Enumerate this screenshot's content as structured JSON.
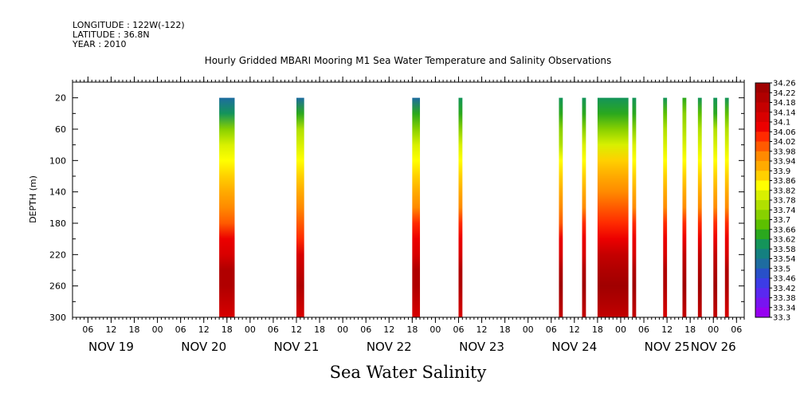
{
  "header": {
    "line1": "LONGITUDE : 122W(-122)",
    "line2": "LATITUDE : 36.8N",
    "line3": "YEAR : 2010"
  },
  "chart_data": {
    "type": "heatmap",
    "title": "Hourly Gridded MBARI Mooring M1 Sea Water Temperature and Salinity Observations",
    "subtitle": "",
    "xlabel": "",
    "ylabel": "DEPTH (m)",
    "footer_label": "Sea Water Salinity",
    "y_axis": {
      "range": [
        300,
        0
      ],
      "ticks": [
        "20",
        "60",
        "100",
        "140",
        "180",
        "220",
        "260",
        "300"
      ],
      "tick_values": [
        20,
        60,
        100,
        140,
        180,
        220,
        260,
        300
      ]
    },
    "x_axis": {
      "range": [
        "2010-11-19T02:00",
        "2010-11-26T08:00"
      ],
      "hour_ticks": [
        {
          "t": "2010-11-19T06:00",
          "label": "06"
        },
        {
          "t": "2010-11-19T12:00",
          "label": "12"
        },
        {
          "t": "2010-11-19T18:00",
          "label": "18"
        },
        {
          "t": "2010-11-20T00:00",
          "label": "00"
        },
        {
          "t": "2010-11-20T06:00",
          "label": "06"
        },
        {
          "t": "2010-11-20T12:00",
          "label": "12"
        },
        {
          "t": "2010-11-20T18:00",
          "label": "18"
        },
        {
          "t": "2010-11-21T00:00",
          "label": "00"
        },
        {
          "t": "2010-11-21T06:00",
          "label": "06"
        },
        {
          "t": "2010-11-21T12:00",
          "label": "12"
        },
        {
          "t": "2010-11-21T18:00",
          "label": "18"
        },
        {
          "t": "2010-11-22T00:00",
          "label": "00"
        },
        {
          "t": "2010-11-22T06:00",
          "label": "06"
        },
        {
          "t": "2010-11-22T12:00",
          "label": "12"
        },
        {
          "t": "2010-11-22T18:00",
          "label": "18"
        },
        {
          "t": "2010-11-23T00:00",
          "label": "00"
        },
        {
          "t": "2010-11-23T06:00",
          "label": "06"
        },
        {
          "t": "2010-11-23T12:00",
          "label": "12"
        },
        {
          "t": "2010-11-23T18:00",
          "label": "18"
        },
        {
          "t": "2010-11-24T00:00",
          "label": "00"
        },
        {
          "t": "2010-11-24T06:00",
          "label": "06"
        },
        {
          "t": "2010-11-24T12:00",
          "label": "12"
        },
        {
          "t": "2010-11-24T18:00",
          "label": "18"
        },
        {
          "t": "2010-11-25T00:00",
          "label": "00"
        },
        {
          "t": "2010-11-25T06:00",
          "label": "06"
        },
        {
          "t": "2010-11-25T12:00",
          "label": "12"
        },
        {
          "t": "2010-11-25T18:00",
          "label": "18"
        },
        {
          "t": "2010-11-26T00:00",
          "label": "00"
        },
        {
          "t": "2010-11-26T06:00",
          "label": "06"
        }
      ],
      "day_labels": [
        {
          "t": "2010-11-19T12:00",
          "label": "NOV 19"
        },
        {
          "t": "2010-11-20T12:00",
          "label": "NOV 20"
        },
        {
          "t": "2010-11-21T12:00",
          "label": "NOV 21"
        },
        {
          "t": "2010-11-22T12:00",
          "label": "NOV 22"
        },
        {
          "t": "2010-11-23T12:00",
          "label": "NOV 23"
        },
        {
          "t": "2010-11-24T12:00",
          "label": "NOV 24"
        },
        {
          "t": "2010-11-25T12:00",
          "label": "NOV 25"
        },
        {
          "t": "2010-11-26T00:00",
          "label": "NOV 26"
        }
      ]
    },
    "colorbar": {
      "min": 33.3,
      "max": 34.26,
      "labels": [
        "34.26",
        "34.22",
        "34.18",
        "34.14",
        "34.1",
        "34.06",
        "34.02",
        "33.98",
        "33.94",
        "33.9",
        "33.86",
        "33.82",
        "33.78",
        "33.74",
        "33.7",
        "33.66",
        "33.62",
        "33.58",
        "33.54",
        "33.5",
        "33.46",
        "33.42",
        "33.38",
        "33.34",
        "33.3"
      ],
      "colors": [
        "#a00000",
        "#b00000",
        "#c40000",
        "#d80000",
        "#ec0000",
        "#ff2a00",
        "#ff5a00",
        "#ff8a00",
        "#ffaa00",
        "#ffd000",
        "#ffff00",
        "#d8f000",
        "#b0e000",
        "#88d000",
        "#5cc000",
        "#2aa81e",
        "#14945a",
        "#148080",
        "#1e6ca0",
        "#2850c8",
        "#3c3ce6",
        "#5a28f0",
        "#7814f0",
        "#9600f0"
      ]
    },
    "profile_depths": [
      20,
      40,
      60,
      80,
      100,
      120,
      140,
      160,
      180,
      200,
      220,
      240,
      260,
      280,
      300
    ],
    "columns": [
      {
        "start": "2010-11-20T16:00",
        "end": "2010-11-20T20:00",
        "profile": [
          33.5,
          33.58,
          33.7,
          33.78,
          33.84,
          33.88,
          33.92,
          33.98,
          34.0,
          34.06,
          34.12,
          34.18,
          34.2,
          34.16,
          34.12
        ]
      },
      {
        "start": "2010-11-21T12:00",
        "end": "2010-11-21T14:00",
        "profile": [
          33.5,
          33.66,
          33.74,
          33.8,
          33.84,
          33.88,
          33.9,
          33.96,
          34.0,
          34.04,
          34.1,
          34.16,
          34.18,
          34.14,
          34.1
        ]
      },
      {
        "start": "2010-11-22T18:00",
        "end": "2010-11-22T20:00",
        "profile": [
          33.52,
          33.62,
          33.7,
          33.78,
          33.84,
          33.88,
          33.92,
          33.98,
          34.02,
          34.08,
          34.12,
          34.18,
          34.2,
          34.16,
          34.12
        ]
      },
      {
        "start": "2010-11-23T06:00",
        "end": "2010-11-23T07:00",
        "profile": [
          33.58,
          33.62,
          33.7,
          33.78,
          33.84,
          33.88,
          33.92,
          33.98,
          34.02,
          34.08,
          34.12,
          34.18,
          34.2,
          34.16,
          34.12
        ]
      },
      {
        "start": "2010-11-24T08:00",
        "end": "2010-11-24T09:00",
        "profile": [
          33.58,
          33.64,
          33.7,
          33.76,
          33.82,
          33.86,
          33.9,
          33.96,
          34.0,
          34.06,
          34.12,
          34.18,
          34.22,
          34.2,
          34.16
        ]
      },
      {
        "start": "2010-11-24T14:00",
        "end": "2010-11-24T15:00",
        "profile": [
          33.6,
          33.66,
          33.72,
          33.78,
          33.84,
          33.88,
          33.92,
          33.98,
          34.02,
          34.08,
          34.12,
          34.18,
          34.22,
          34.2,
          34.16
        ]
      },
      {
        "start": "2010-11-24T18:00",
        "end": "2010-11-25T02:00",
        "profile": [
          33.58,
          33.64,
          33.72,
          33.8,
          33.86,
          33.9,
          33.94,
          34.0,
          34.04,
          34.08,
          34.14,
          34.18,
          34.24,
          34.2,
          34.14
        ]
      },
      {
        "start": "2010-11-25T03:00",
        "end": "2010-11-25T04:00",
        "profile": [
          33.58,
          33.64,
          33.72,
          33.78,
          33.84,
          33.88,
          33.92,
          33.98,
          34.02,
          34.08,
          34.12,
          34.18,
          34.22,
          34.18,
          34.14
        ]
      },
      {
        "start": "2010-11-25T11:00",
        "end": "2010-11-25T12:00",
        "profile": [
          33.6,
          33.68,
          33.74,
          33.8,
          33.84,
          33.88,
          33.92,
          33.98,
          34.02,
          34.08,
          34.12,
          34.18,
          34.2,
          34.16,
          34.12
        ]
      },
      {
        "start": "2010-11-25T16:00",
        "end": "2010-11-25T17:00",
        "profile": [
          33.62,
          33.7,
          33.76,
          33.8,
          33.84,
          33.88,
          33.92,
          33.98,
          34.02,
          34.08,
          34.14,
          34.2,
          34.22,
          34.18,
          34.14
        ]
      },
      {
        "start": "2010-11-25T20:00",
        "end": "2010-11-25T21:00",
        "profile": [
          33.6,
          33.68,
          33.74,
          33.8,
          33.84,
          33.88,
          33.92,
          33.98,
          34.02,
          34.08,
          34.14,
          34.2,
          34.22,
          34.18,
          34.14
        ]
      },
      {
        "start": "2010-11-26T00:00",
        "end": "2010-11-26T01:00",
        "profile": [
          33.58,
          33.66,
          33.74,
          33.8,
          33.84,
          33.88,
          33.92,
          33.98,
          34.02,
          34.08,
          34.14,
          34.2,
          34.22,
          34.18,
          34.14
        ]
      },
      {
        "start": "2010-11-26T03:00",
        "end": "2010-11-26T04:00",
        "profile": [
          33.6,
          33.68,
          33.74,
          33.8,
          33.84,
          33.88,
          33.92,
          33.98,
          34.02,
          34.08,
          34.12,
          34.18,
          34.2,
          34.16,
          34.12
        ]
      }
    ]
  }
}
